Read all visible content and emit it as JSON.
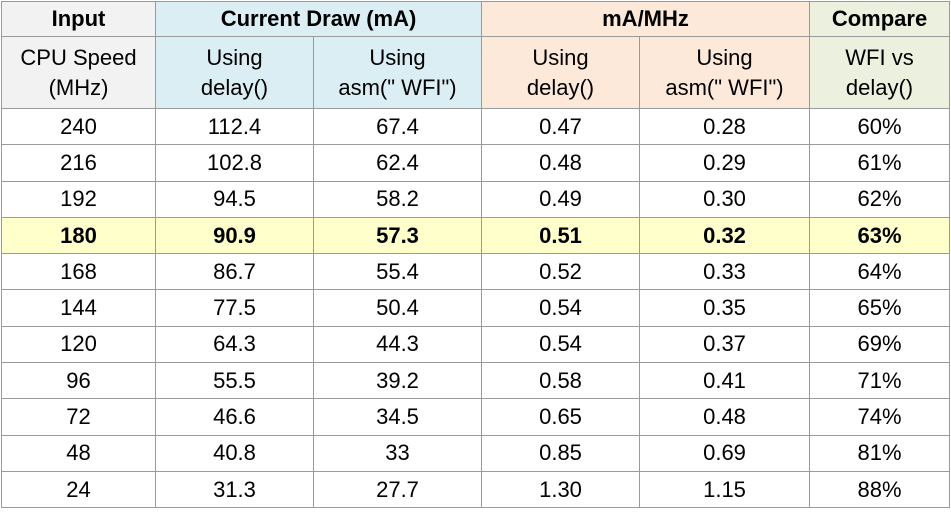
{
  "groups": {
    "input": "Input",
    "current_draw": "Current Draw (mA)",
    "ma_per_mhz": "mA/MHz",
    "compare": "Compare"
  },
  "subheaders": {
    "cpu_speed": [
      "CPU Speed",
      "(MHz)"
    ],
    "current_delay": [
      "Using",
      "delay()"
    ],
    "current_wfi": [
      "Using",
      "asm(\" WFI\")"
    ],
    "ratio_delay": [
      "Using",
      "delay()"
    ],
    "ratio_wfi": [
      "Using",
      "asm(\" WFI\")"
    ],
    "compare": [
      "WFI vs",
      "delay()"
    ]
  },
  "highlight_row": 3,
  "colors": {
    "input_header": "#f2f2f2",
    "current_draw_header": "#dbeef4",
    "ma_per_mhz_header": "#fde9d9",
    "compare_header": "#ebf1de",
    "highlight_row": "#ffffcc",
    "grid": "#9a9a9a"
  },
  "rows": [
    [
      "240",
      "112.4",
      "67.4",
      "0.47",
      "0.28",
      "60%"
    ],
    [
      "216",
      "102.8",
      "62.4",
      "0.48",
      "0.29",
      "61%"
    ],
    [
      "192",
      "94.5",
      "58.2",
      "0.49",
      "0.30",
      "62%"
    ],
    [
      "180",
      "90.9",
      "57.3",
      "0.51",
      "0.32",
      "63%"
    ],
    [
      "168",
      "86.7",
      "55.4",
      "0.52",
      "0.33",
      "64%"
    ],
    [
      "144",
      "77.5",
      "50.4",
      "0.54",
      "0.35",
      "65%"
    ],
    [
      "120",
      "64.3",
      "44.3",
      "0.54",
      "0.37",
      "69%"
    ],
    [
      "96",
      "55.5",
      "39.2",
      "0.58",
      "0.41",
      "71%"
    ],
    [
      "72",
      "46.6",
      "34.5",
      "0.65",
      "0.48",
      "74%"
    ],
    [
      "48",
      "40.8",
      "33",
      "0.85",
      "0.69",
      "81%"
    ],
    [
      "24",
      "31.3",
      "27.7",
      "1.30",
      "1.15",
      "88%"
    ]
  ]
}
